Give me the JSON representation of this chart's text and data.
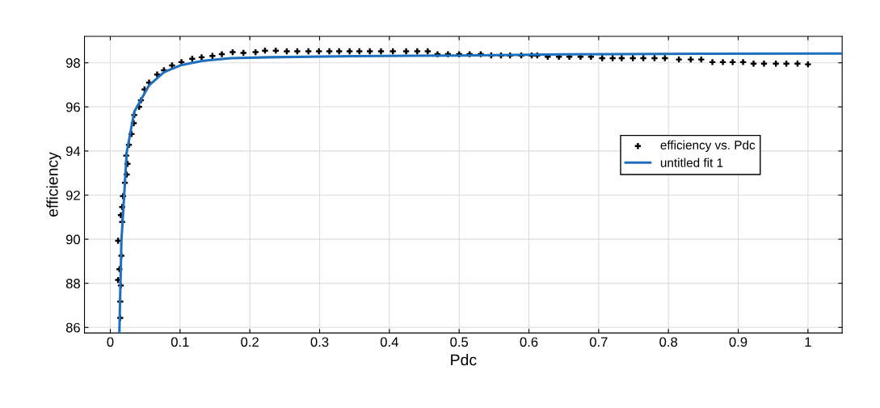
{
  "chart_data": {
    "type": "scatter",
    "xlabel": "Pdc",
    "ylabel": "efficiency",
    "xlim": [
      -0.037,
      1.049
    ],
    "ylim": [
      85.75,
      99.2
    ],
    "xticks": [
      0,
      0.1,
      0.2,
      0.3,
      0.4,
      0.5,
      0.6,
      0.7,
      0.8,
      0.9,
      1
    ],
    "yticks": [
      86,
      88,
      90,
      92,
      94,
      96,
      98
    ],
    "grid": true,
    "legend": "center right",
    "series": [
      {
        "name": "efficiency vs. Pdc",
        "marker": "cross",
        "color": "#000000",
        "x": [
          0.0143,
          0.0143,
          0.0151,
          0.0112,
          0.0131,
          0.0159,
          0.0112,
          0.017,
          0.0151,
          0.017,
          0.0182,
          0.0209,
          0.0236,
          0.0247,
          0.0228,
          0.0267,
          0.0305,
          0.0336,
          0.0344,
          0.0413,
          0.044,
          0.0491,
          0.0556,
          0.0672,
          0.0769,
          0.0885,
          0.102,
          0.1174,
          0.1309,
          0.1464,
          0.1599,
          0.1754,
          0.1908,
          0.2082,
          0.2217,
          0.2372,
          0.253,
          0.268,
          0.284,
          0.299,
          0.314,
          0.328,
          0.343,
          0.357,
          0.372,
          0.388,
          0.405,
          0.424,
          0.44,
          0.455,
          0.469,
          0.484,
          0.5,
          0.515,
          0.531,
          0.546,
          0.56,
          0.573,
          0.589,
          0.604,
          0.612,
          0.627,
          0.643,
          0.658,
          0.674,
          0.689,
          0.705,
          0.72,
          0.733,
          0.749,
          0.764,
          0.78,
          0.795,
          0.815,
          0.832,
          0.847,
          0.863,
          0.878,
          0.892,
          0.907,
          0.922,
          0.937,
          0.954,
          0.969,
          0.985,
          1.0
        ],
        "values": [
          86.43,
          87.17,
          87.9,
          88.15,
          88.64,
          89.25,
          89.93,
          90.78,
          91.09,
          91.46,
          91.95,
          92.56,
          92.93,
          93.42,
          93.79,
          94.28,
          94.77,
          95.26,
          95.63,
          96.0,
          96.3,
          96.79,
          97.1,
          97.47,
          97.66,
          97.88,
          98.03,
          98.18,
          98.25,
          98.31,
          98.39,
          98.48,
          98.45,
          98.48,
          98.55,
          98.55,
          98.52,
          98.52,
          98.52,
          98.52,
          98.52,
          98.52,
          98.52,
          98.52,
          98.52,
          98.52,
          98.52,
          98.52,
          98.52,
          98.52,
          98.39,
          98.39,
          98.39,
          98.39,
          98.39,
          98.33,
          98.33,
          98.33,
          98.33,
          98.33,
          98.33,
          98.27,
          98.27,
          98.27,
          98.27,
          98.27,
          98.21,
          98.21,
          98.21,
          98.21,
          98.21,
          98.21,
          98.21,
          98.15,
          98.15,
          98.15,
          98.03,
          98.03,
          98.03,
          98.03,
          97.96,
          97.96,
          97.96,
          97.96,
          97.96,
          97.93
        ]
      },
      {
        "name": "untitled fit 1",
        "type": "line",
        "line_style": "solid",
        "color": "#1f6fbf",
        "x": [
          0.013,
          0.0159,
          0.0236,
          0.0344,
          0.0556,
          0.0769,
          0.102,
          0.131,
          0.173,
          0.227,
          0.35,
          0.5,
          0.65,
          0.85,
          1.049
        ],
        "values": [
          85.75,
          89.9,
          93.95,
          95.78,
          96.98,
          97.57,
          97.9,
          98.08,
          98.21,
          98.25,
          98.3,
          98.33,
          98.38,
          98.41,
          98.42
        ]
      }
    ]
  }
}
